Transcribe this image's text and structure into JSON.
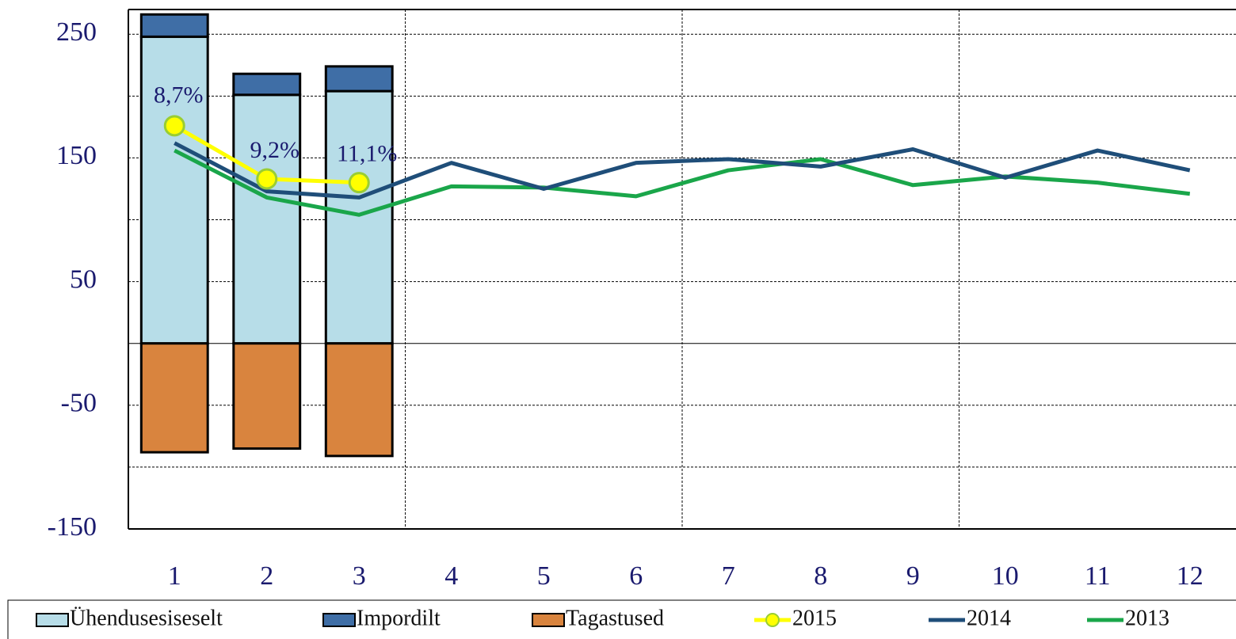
{
  "chart_data": {
    "type": "bar_line",
    "categories": [
      "1",
      "2",
      "3",
      "4",
      "5",
      "6",
      "7",
      "8",
      "9",
      "10",
      "11",
      "12"
    ],
    "series": [
      {
        "name": "Ühendusesiseselt",
        "type": "bar",
        "color": "#b7dde8",
        "values": [
          248,
          201,
          204,
          null,
          null,
          null,
          null,
          null,
          null,
          null,
          null,
          null
        ]
      },
      {
        "name": "Impordilt",
        "type": "bar",
        "color": "#3f6ea6",
        "values": [
          18,
          17,
          20,
          null,
          null,
          null,
          null,
          null,
          null,
          null,
          null,
          null
        ]
      },
      {
        "name": "Tagastused",
        "type": "bar",
        "color": "#d9843e",
        "values": [
          -88,
          -85,
          -91,
          null,
          null,
          null,
          null,
          null,
          null,
          null,
          null,
          null
        ]
      },
      {
        "name": "2015",
        "type": "line",
        "color": "#ffff00",
        "marker": true,
        "values": [
          176,
          133,
          130,
          null,
          null,
          null,
          null,
          null,
          null,
          null,
          null,
          null
        ],
        "point_labels": [
          "8,7%",
          "9,2%",
          "11,1%"
        ]
      },
      {
        "name": "2014",
        "type": "line",
        "color": "#1f4e79",
        "values": [
          162,
          123,
          118,
          146,
          125,
          146,
          149,
          143,
          157,
          134,
          156,
          140
        ]
      },
      {
        "name": "2013",
        "type": "line",
        "color": "#1aa64a",
        "values": [
          156,
          118,
          104,
          127,
          126,
          119,
          140,
          149,
          128,
          135,
          130,
          121
        ]
      }
    ],
    "ylim": [
      -150,
      270
    ],
    "yticks": [
      -150,
      -50,
      50,
      150,
      250
    ],
    "minor_yticks": [
      -100,
      0,
      100,
      200
    ],
    "grid": true,
    "legend": "bottom"
  }
}
